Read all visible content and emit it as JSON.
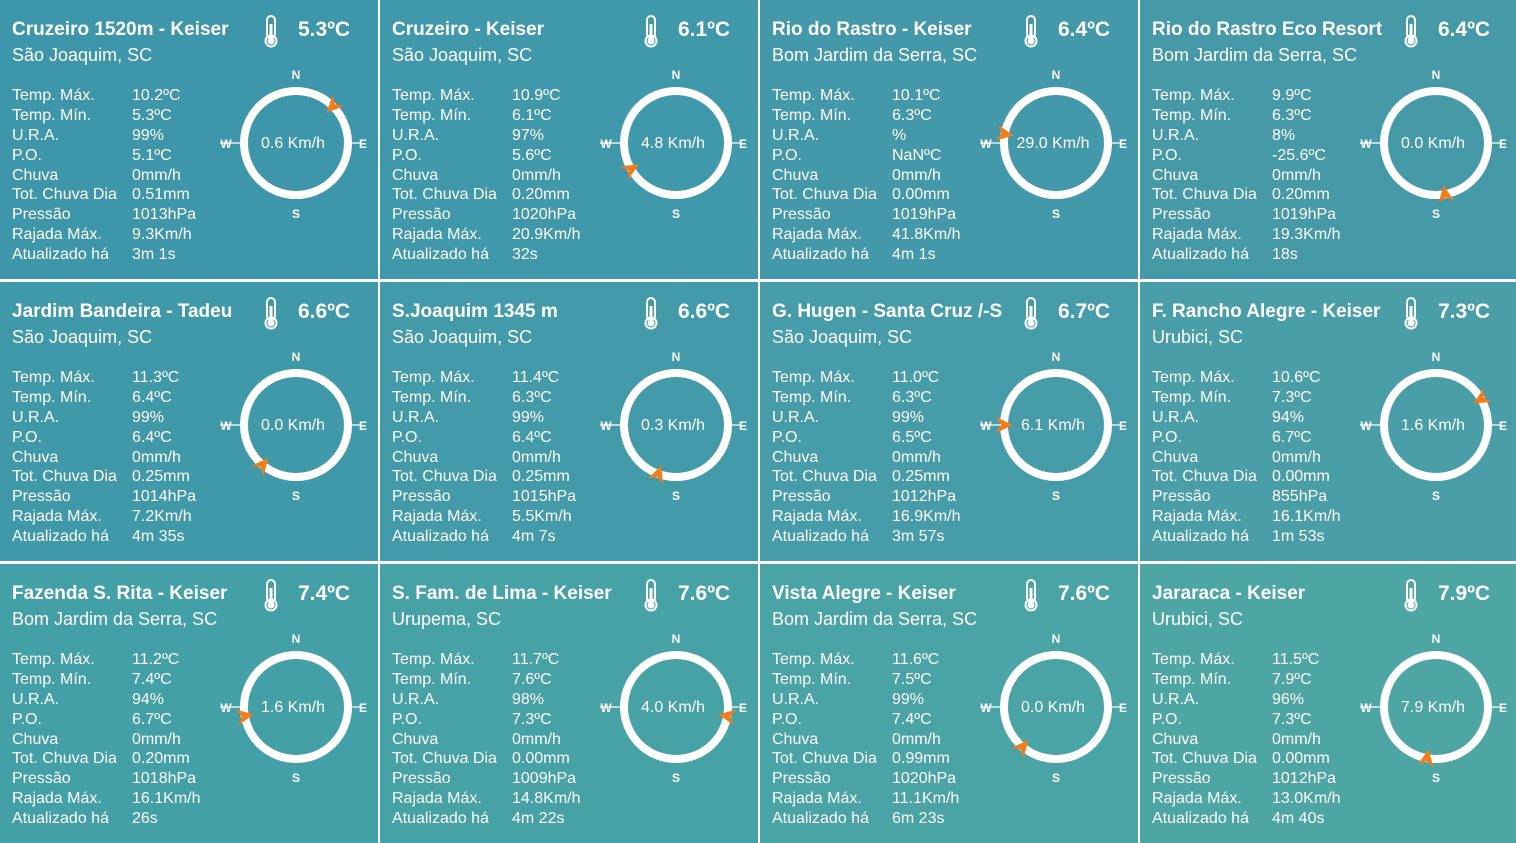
{
  "colors": {
    "card_backgrounds": [
      "#3e96aa",
      "#4098ab",
      "#4399a9",
      "#469aa8",
      "#4099a9",
      "#439aa8",
      "#469ca8",
      "#4a9ea7",
      "#44a0a7",
      "#47a2a6",
      "#4aa4a5",
      "#4da6a4"
    ],
    "ring": "#ffffff",
    "arrow": "#f57c17"
  },
  "labels": {
    "temp_max": "Temp. Máx.",
    "temp_min": "Temp. Mín.",
    "ura": "U.R.A.",
    "po": "P.O.",
    "chuva": "Chuva",
    "tot_chuva": "Tot. Chuva Dia",
    "pressao": "Pressão",
    "rajada": "Rajada Máx.",
    "atualizado": "Atualizado há",
    "compass_n": "N",
    "compass_s": "S",
    "compass_e": "E",
    "compass_w": "W"
  },
  "icons": {
    "thermometer": "thermometer-icon",
    "compass": "wind-compass-icon",
    "arrow": "wind-direction-arrow-icon"
  },
  "stations": [
    {
      "name": "Cruzeiro 1520m - Keiser",
      "location": "São Joaquim, SC",
      "temp": "5.3ºC",
      "temp_max": "10.2ºC",
      "temp_min": "5.3ºC",
      "ura": "99%",
      "po": "5.1ºC",
      "chuva": "0mm/h",
      "tot_chuva": "0.51mm",
      "pressao": "1013hPa",
      "rajada": "9.3Km/h",
      "atualizado": "3m 1s",
      "wind": "0.6 Km/h",
      "wind_dir_deg": 45
    },
    {
      "name": "Cruzeiro - Keiser",
      "location": "São Joaquim, SC",
      "temp": "6.1ºC",
      "temp_max": "10.9ºC",
      "temp_min": "6.1ºC",
      "ura": "97%",
      "po": "5.6ºC",
      "chuva": "0mm/h",
      "tot_chuva": "0.20mm",
      "pressao": "1020hPa",
      "rajada": "20.9Km/h",
      "atualizado": "32s",
      "wind": "4.8 Km/h",
      "wind_dir_deg": 240
    },
    {
      "name": "Rio do Rastro - Keiser",
      "location": "Bom Jardim da Serra, SC",
      "temp": "6.4ºC",
      "temp_max": "10.1ºC",
      "temp_min": "6.3ºC",
      "ura": "%",
      "po": "NaNºC",
      "chuva": "0mm/h",
      "tot_chuva": "0.00mm",
      "pressao": "1019hPa",
      "rajada": "41.8Km/h",
      "atualizado": "4m 1s",
      "wind": "29.0 Km/h",
      "wind_dir_deg": 280
    },
    {
      "name": "Rio do Rastro Eco Resort",
      "location": "Bom Jardim da Serra, SC",
      "temp": "6.4ºC",
      "temp_max": "9.9ºC",
      "temp_min": "6.3ºC",
      "ura": "8%",
      "po": "-25.6ºC",
      "chuva": "0mm/h",
      "tot_chuva": "0.20mm",
      "pressao": "1019hPa",
      "rajada": "19.3Km/h",
      "atualizado": "18s",
      "wind": "0.0 Km/h",
      "wind_dir_deg": 170
    },
    {
      "name": "Jardim Bandeira - Tadeu",
      "location": "São Joaquim, SC",
      "temp": "6.6ºC",
      "temp_max": "11.3ºC",
      "temp_min": "6.4ºC",
      "ura": "99%",
      "po": "6.4ºC",
      "chuva": "0mm/h",
      "tot_chuva": "0.25mm",
      "pressao": "1014hPa",
      "rajada": "7.2Km/h",
      "atualizado": "4m 35s",
      "wind": "0.0 Km/h",
      "wind_dir_deg": 220
    },
    {
      "name": "S.Joaquim 1345 m",
      "location": "São Joaquim, SC",
      "temp": "6.6ºC",
      "temp_max": "11.4ºC",
      "temp_min": "6.3ºC",
      "ura": "99%",
      "po": "6.4ºC",
      "chuva": "0mm/h",
      "tot_chuva": "0.25mm",
      "pressao": "1015hPa",
      "rajada": "5.5Km/h",
      "atualizado": "4m 7s",
      "wind": "0.3 Km/h",
      "wind_dir_deg": 200
    },
    {
      "name": "G. Hugen - Santa Cruz /-S",
      "location": "São Joaquim, SC",
      "temp": "6.7ºC",
      "temp_max": "11.0ºC",
      "temp_min": "6.3ºC",
      "ura": "99%",
      "po": "6.5ºC",
      "chuva": "0mm/h",
      "tot_chuva": "0.25mm",
      "pressao": "1012hPa",
      "rajada": "16.9Km/h",
      "atualizado": "3m 57s",
      "wind": "6.1 Km/h",
      "wind_dir_deg": 270
    },
    {
      "name": "F. Rancho Alegre - Keiser",
      "location": "Urubici, SC",
      "temp": "7.3ºC",
      "temp_max": "10.6ºC",
      "temp_min": "7.3ºC",
      "ura": "94%",
      "po": "6.7ºC",
      "chuva": "0mm/h",
      "tot_chuva": "0.00mm",
      "pressao": "855hPa",
      "rajada": "16.1Km/h",
      "atualizado": "1m 53s",
      "wind": "1.6 Km/h",
      "wind_dir_deg": 60
    },
    {
      "name": "Fazenda S. Rita - Keiser",
      "location": "Bom Jardim da Serra, SC",
      "temp": "7.4ºC",
      "temp_max": "11.2ºC",
      "temp_min": "7.4ºC",
      "ura": "94%",
      "po": "6.7ºC",
      "chuva": "0mm/h",
      "tot_chuva": "0.20mm",
      "pressao": "1018hPa",
      "rajada": "16.1Km/h",
      "atualizado": "26s",
      "wind": "1.6 Km/h",
      "wind_dir_deg": 260
    },
    {
      "name": "S. Fam. de Lima - Keiser",
      "location": "Urupema, SC",
      "temp": "7.6ºC",
      "temp_max": "11.7ºC",
      "temp_min": "7.6ºC",
      "ura": "98%",
      "po": "7.3ºC",
      "chuva": "0mm/h",
      "tot_chuva": "0.00mm",
      "pressao": "1009hPa",
      "rajada": "14.8Km/h",
      "atualizado": "4m 22s",
      "wind": "4.0 Km/h",
      "wind_dir_deg": 100
    },
    {
      "name": "Vista Alegre - Keiser",
      "location": "Bom Jardim da Serra, SC",
      "temp": "7.6ºC",
      "temp_max": "11.6ºC",
      "temp_min": "7.5ºC",
      "ura": "99%",
      "po": "7.4ºC",
      "chuva": "0mm/h",
      "tot_chuva": "0.99mm",
      "pressao": "1020hPa",
      "rajada": "11.1Km/h",
      "atualizado": "6m 23s",
      "wind": "0.0 Km/h",
      "wind_dir_deg": 220
    },
    {
      "name": "Jararaca - Keiser",
      "location": "Urubici, SC",
      "temp": "7.9ºC",
      "temp_max": "11.5ºC",
      "temp_min": "7.9ºC",
      "ura": "96%",
      "po": "7.3ºC",
      "chuva": "0mm/h",
      "tot_chuva": "0.00mm",
      "pressao": "1012hPa",
      "rajada": "13.0Km/h",
      "atualizado": "4m 40s",
      "wind": "7.9 Km/h",
      "wind_dir_deg": 190
    }
  ]
}
